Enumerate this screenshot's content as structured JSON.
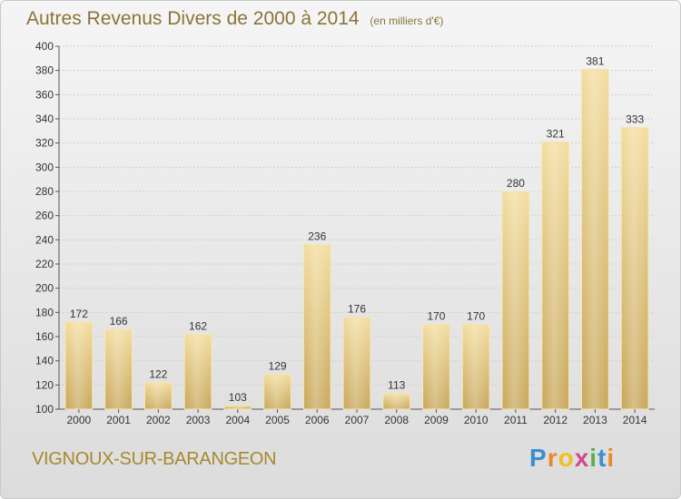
{
  "header": {
    "title": "Autres Revenus Divers de 2000 à 2014",
    "subtitle": "(en milliers d'€)"
  },
  "footer": {
    "place": "VIGNOUX-SUR-BARANGEON",
    "logo_letters": [
      "P",
      "r",
      "o",
      "x",
      "i",
      "t",
      "i"
    ],
    "logo_colors": [
      "#3a8fd0",
      "#e8892a",
      "#f0c020",
      "#d04a8a",
      "#5ab04a",
      "#3a8fd0",
      "#e8892a"
    ]
  },
  "chart_data": {
    "type": "bar",
    "title": "Autres Revenus Divers de 2000 à 2014",
    "subtitle": "(en milliers d'€)",
    "categories": [
      "2000",
      "2001",
      "2002",
      "2003",
      "2004",
      "2005",
      "2006",
      "2007",
      "2008",
      "2009",
      "2010",
      "2011",
      "2012",
      "2013",
      "2014"
    ],
    "values": [
      172,
      166,
      122,
      162,
      103,
      129,
      236,
      176,
      113,
      170,
      170,
      280,
      321,
      381,
      333
    ],
    "ylim": [
      100,
      400
    ],
    "yticks": [
      100,
      120,
      140,
      160,
      180,
      200,
      220,
      240,
      260,
      280,
      300,
      320,
      340,
      360,
      380,
      400
    ],
    "grid": true,
    "bar_color_light": "#f3dda0",
    "bar_color_dark": "#c9a95e",
    "label_color": "#333333"
  }
}
